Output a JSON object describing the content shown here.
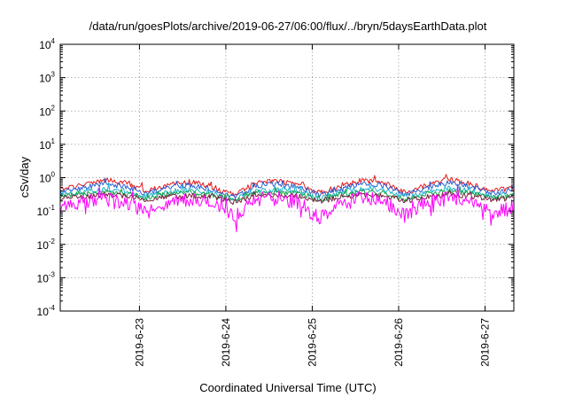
{
  "chart_data": {
    "type": "line",
    "title": "/data/run/goesPlots/archive/2019-06-27/06:00/flux/../bryn/5daysEarthData.plot",
    "xlabel": "Coordinated Universal Time (UTC)",
    "ylabel": "cSv/day",
    "yscale": "log",
    "ylim": [
      0.0001,
      10000
    ],
    "xlim": [
      "2019-06-22T02:00",
      "2019-06-27T08:00"
    ],
    "grid": true,
    "y_ticks": [
      {
        "base": "10",
        "exp": "-4"
      },
      {
        "base": "10",
        "exp": "-3"
      },
      {
        "base": "10",
        "exp": "-2"
      },
      {
        "base": "10",
        "exp": "-1"
      },
      {
        "base": "10",
        "exp": "0"
      },
      {
        "base": "10",
        "exp": "1"
      },
      {
        "base": "10",
        "exp": "2"
      },
      {
        "base": "10",
        "exp": "3"
      },
      {
        "base": "10",
        "exp": "4"
      }
    ],
    "x_ticks": [
      "2019-6-23",
      "2019-6-24",
      "2019-6-25",
      "2019-6-26",
      "2019-6-27"
    ],
    "x_tick_dates": [
      "2019-06-23T00:00",
      "2019-06-24T00:00",
      "2019-06-25T00:00",
      "2019-06-26T00:00",
      "2019-06-27T00:00"
    ],
    "series": [
      {
        "color": "#e41a1c",
        "x": [
          "2019-06-22T02:00",
          "2019-06-22T08:00",
          "2019-06-22T14:00",
          "2019-06-22T20:00",
          "2019-06-23T02:00",
          "2019-06-23T08:00",
          "2019-06-23T14:00",
          "2019-06-23T20:00",
          "2019-06-24T02:00",
          "2019-06-24T08:00",
          "2019-06-24T14:00",
          "2019-06-24T20:00",
          "2019-06-25T02:00",
          "2019-06-25T08:00",
          "2019-06-25T14:00",
          "2019-06-25T20:00",
          "2019-06-26T02:00",
          "2019-06-26T08:00",
          "2019-06-26T14:00",
          "2019-06-26T20:00",
          "2019-06-27T02:00",
          "2019-06-27T08:00"
        ],
        "values": [
          0.45,
          0.6,
          0.85,
          0.7,
          0.4,
          0.6,
          0.75,
          0.55,
          0.3,
          0.65,
          0.8,
          0.65,
          0.35,
          0.55,
          0.85,
          0.7,
          0.35,
          0.6,
          0.9,
          0.65,
          0.4,
          0.5
        ]
      },
      {
        "color": "#2a5fd6",
        "x": [
          "2019-06-22T02:00",
          "2019-06-22T08:00",
          "2019-06-22T14:00",
          "2019-06-22T20:00",
          "2019-06-23T02:00",
          "2019-06-23T08:00",
          "2019-06-23T14:00",
          "2019-06-23T20:00",
          "2019-06-24T02:00",
          "2019-06-24T08:00",
          "2019-06-24T14:00",
          "2019-06-24T20:00",
          "2019-06-25T02:00",
          "2019-06-25T08:00",
          "2019-06-25T14:00",
          "2019-06-25T20:00",
          "2019-06-26T02:00",
          "2019-06-26T08:00",
          "2019-06-26T14:00",
          "2019-06-26T20:00",
          "2019-06-27T02:00",
          "2019-06-27T08:00"
        ],
        "values": [
          0.38,
          0.5,
          0.65,
          0.55,
          0.33,
          0.5,
          0.6,
          0.45,
          0.25,
          0.52,
          0.65,
          0.52,
          0.3,
          0.45,
          0.68,
          0.58,
          0.3,
          0.5,
          0.7,
          0.55,
          0.33,
          0.42
        ]
      },
      {
        "color": "#1fb5c9",
        "x": [
          "2019-06-22T02:00",
          "2019-06-22T08:00",
          "2019-06-22T14:00",
          "2019-06-22T20:00",
          "2019-06-23T02:00",
          "2019-06-23T08:00",
          "2019-06-23T14:00",
          "2019-06-23T20:00",
          "2019-06-24T02:00",
          "2019-06-24T08:00",
          "2019-06-24T14:00",
          "2019-06-24T20:00",
          "2019-06-25T02:00",
          "2019-06-25T08:00",
          "2019-06-25T14:00",
          "2019-06-25T20:00",
          "2019-06-26T02:00",
          "2019-06-26T08:00",
          "2019-06-26T14:00",
          "2019-06-26T20:00",
          "2019-06-27T02:00",
          "2019-06-27T08:00"
        ],
        "values": [
          0.3,
          0.38,
          0.45,
          0.4,
          0.27,
          0.38,
          0.43,
          0.35,
          0.21,
          0.4,
          0.45,
          0.4,
          0.24,
          0.35,
          0.47,
          0.42,
          0.24,
          0.38,
          0.48,
          0.41,
          0.27,
          0.33
        ]
      },
      {
        "color": "#16a34a",
        "x": [
          "2019-06-22T02:00",
          "2019-06-22T08:00",
          "2019-06-22T14:00",
          "2019-06-22T20:00",
          "2019-06-23T02:00",
          "2019-06-23T08:00",
          "2019-06-23T14:00",
          "2019-06-23T20:00",
          "2019-06-24T02:00",
          "2019-06-24T08:00",
          "2019-06-24T14:00",
          "2019-06-24T20:00",
          "2019-06-25T02:00",
          "2019-06-25T08:00",
          "2019-06-25T14:00",
          "2019-06-25T20:00",
          "2019-06-26T02:00",
          "2019-06-26T08:00",
          "2019-06-26T14:00",
          "2019-06-26T20:00",
          "2019-06-27T02:00",
          "2019-06-27T08:00"
        ],
        "values": [
          0.28,
          0.33,
          0.37,
          0.34,
          0.25,
          0.33,
          0.36,
          0.31,
          0.2,
          0.34,
          0.37,
          0.34,
          0.22,
          0.31,
          0.38,
          0.35,
          0.22,
          0.33,
          0.39,
          0.34,
          0.25,
          0.29
        ]
      },
      {
        "color": "#7a1f3d",
        "x": [
          "2019-06-22T02:00",
          "2019-06-22T08:00",
          "2019-06-22T14:00",
          "2019-06-22T20:00",
          "2019-06-23T02:00",
          "2019-06-23T08:00",
          "2019-06-23T14:00",
          "2019-06-23T20:00",
          "2019-06-24T02:00",
          "2019-06-24T08:00",
          "2019-06-24T14:00",
          "2019-06-24T20:00",
          "2019-06-25T02:00",
          "2019-06-25T08:00",
          "2019-06-25T14:00",
          "2019-06-25T20:00",
          "2019-06-26T02:00",
          "2019-06-26T08:00",
          "2019-06-26T14:00",
          "2019-06-26T20:00",
          "2019-06-27T02:00",
          "2019-06-27T08:00"
        ],
        "values": [
          0.24,
          0.27,
          0.3,
          0.28,
          0.22,
          0.27,
          0.29,
          0.26,
          0.18,
          0.28,
          0.3,
          0.28,
          0.2,
          0.26,
          0.31,
          0.29,
          0.2,
          0.27,
          0.31,
          0.28,
          0.22,
          0.25
        ]
      },
      {
        "color": "#ff00ff",
        "x": [
          "2019-06-22T02:00",
          "2019-06-22T08:00",
          "2019-06-22T14:00",
          "2019-06-22T20:00",
          "2019-06-23T02:00",
          "2019-06-23T08:00",
          "2019-06-23T14:00",
          "2019-06-23T20:00",
          "2019-06-24T02:00",
          "2019-06-24T08:00",
          "2019-06-24T14:00",
          "2019-06-24T20:00",
          "2019-06-25T02:00",
          "2019-06-25T08:00",
          "2019-06-25T14:00",
          "2019-06-25T20:00",
          "2019-06-26T02:00",
          "2019-06-26T08:00",
          "2019-06-26T14:00",
          "2019-06-26T20:00",
          "2019-06-27T02:00",
          "2019-06-27T08:00"
        ],
        "values": [
          0.12,
          0.2,
          0.24,
          0.18,
          0.09,
          0.19,
          0.23,
          0.16,
          0.07,
          0.2,
          0.24,
          0.18,
          0.06,
          0.16,
          0.25,
          0.19,
          0.07,
          0.19,
          0.25,
          0.18,
          0.09,
          0.14
        ]
      }
    ]
  }
}
